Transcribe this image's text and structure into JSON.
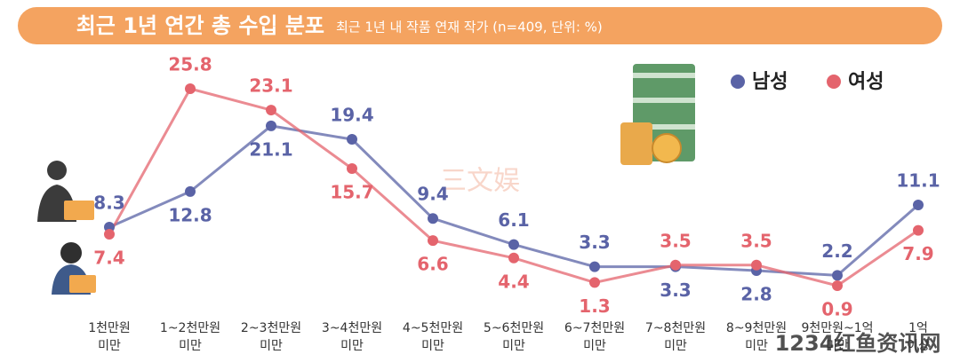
{
  "chart_data": {
    "type": "line",
    "title": "최근 1년 연간 총 수입 분포",
    "subtitle": "최근 1년 내 작품 연재 작가 (n=409, 단위: %)",
    "categories": [
      "1천만원 미만",
      "1~2천만원 미만",
      "2~3천만원 미만",
      "3~4천만원 미만",
      "4~5천만원 미만",
      "5~6천만원 미만",
      "6~7천만원 미만",
      "7~8천만원 미만",
      "8~9천만원 미만",
      "9천만원~1억 미만",
      "1억 이상"
    ],
    "series": [
      {
        "name": "남성",
        "color": "#5a63a6",
        "values": [
          8.3,
          12.8,
          21.1,
          19.4,
          9.4,
          6.1,
          3.3,
          3.3,
          2.8,
          2.2,
          11.1
        ]
      },
      {
        "name": "여성",
        "color": "#e4646d",
        "values": [
          7.4,
          25.8,
          23.1,
          15.7,
          6.6,
          4.4,
          1.3,
          3.5,
          3.5,
          0.9,
          7.9
        ]
      }
    ],
    "legend": "top-right",
    "watermarks": [
      "三文娱",
      "1234红鱼资讯网"
    ]
  }
}
